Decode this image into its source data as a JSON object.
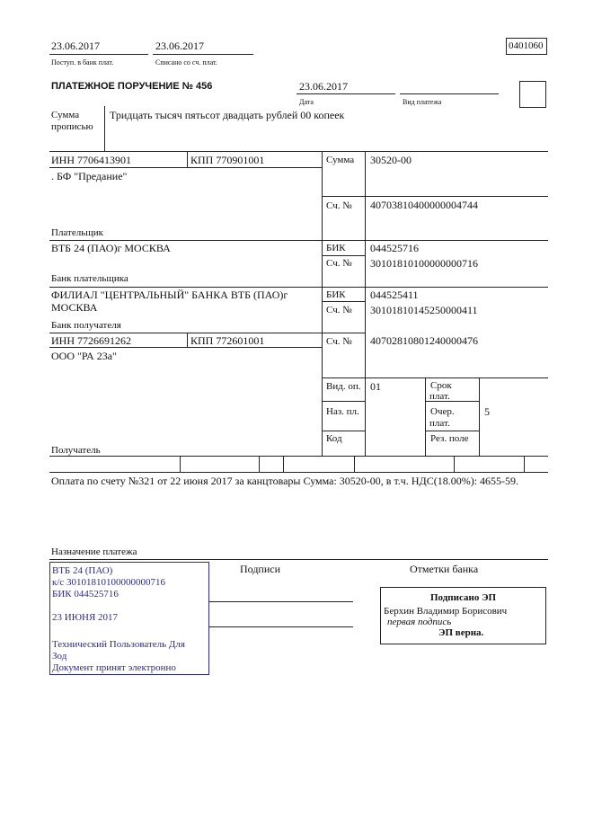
{
  "header": {
    "received_date": "23.06.2017",
    "received_label": "Поступ. в банк плат.",
    "debited_date": "23.06.2017",
    "debited_label": "Списано со сч. плат.",
    "form_code": "0401060"
  },
  "title": "ПЛАТЕЖНОЕ ПОРУЧЕНИЕ № 456",
  "date": "23.06.2017",
  "date_label": "Дата",
  "payment_type_label": "Вид платежа",
  "amount_words_label_1": "Сумма",
  "amount_words_label_2": "прописью",
  "amount_words": "Тридцать тысяч пятьсот двадцать рублей 00 копеек",
  "payer": {
    "inn": "ИНН 7706413901",
    "kpp": "КПП 770901001",
    "name": ". БФ \"Предание\"",
    "label": "Плательщик",
    "amount_label": "Сумма",
    "amount": "30520-00",
    "account_label": "Сч. №",
    "account": "40703810400000004744"
  },
  "payer_bank": {
    "name": "ВТБ 24 (ПАО)г МОСКВА",
    "label": "Банк плательщика",
    "bik_label": "БИК",
    "bik": "044525716",
    "account_label": "Сч. №",
    "account": "30101810100000000716"
  },
  "payee_bank": {
    "name_1": "ФИЛИАЛ \"ЦЕНТРАЛЬНЫЙ\" БАНКА ВТБ (ПАО)г",
    "name_2": "МОСКВА",
    "label": "Банк получателя",
    "bik_label": "БИК",
    "bik": "044525411",
    "account_label": "Сч. №",
    "account": "30101810145250000411"
  },
  "payee": {
    "inn": "ИНН 7726691262",
    "kpp": "КПП 772601001",
    "name": "ООО \"РА 23а\"",
    "label": "Получатель",
    "account_label": "Сч. №",
    "account": "40702810801240000476"
  },
  "codes": {
    "op_type_label": "Вид. оп.",
    "op_type": "01",
    "purpose_code_label": "Наз. пл.",
    "code_label": "Код",
    "due_label_1": "Срок",
    "due_label_2": "плат.",
    "priority_label_1": "Очер.",
    "priority_label_2": "плат.",
    "priority": "5",
    "reserve_label": "Рез. поле"
  },
  "purpose": "Оплата по счету №321 от 22 июня 2017 за канцтовары Сумма: 30520-00, в т.ч. НДС(18.00%): 4655-59.",
  "purpose_label": "Назначение платежа",
  "signatures_label": "Подписи",
  "bank_marks_label": "Отметки банка",
  "bank_stamp": {
    "line1": "ВТБ 24 (ПАО)",
    "line2": "к/с 30101810100000000716",
    "line3": "БИК 044525716",
    "date": "23 ИЮНЯ 2017",
    "user_1": "Технический Пользователь Для",
    "user_2": "Зод",
    "accepted": "Документ принят электронно",
    "color": "#2a2a9a"
  },
  "e_signature": {
    "title": "Подписано ЭП",
    "signer": "Берхин Владимир Борисович",
    "role": "первая подпись",
    "status": "ЭП верна."
  }
}
